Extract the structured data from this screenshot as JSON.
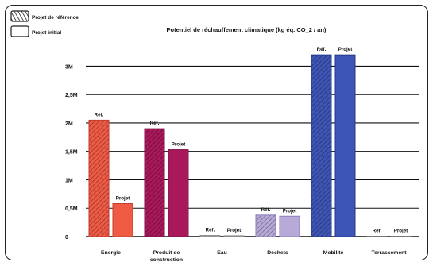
{
  "chart_data": {
    "type": "bar",
    "title": "Potentiel de réchauffement climatique (kg éq. CO_2 / an)",
    "xlabel": "",
    "ylabel": "",
    "ylim": [
      0,
      3300000
    ],
    "yticks": [
      {
        "value": 0,
        "label": "0"
      },
      {
        "value": 500000,
        "label": "0,5M"
      },
      {
        "value": 1000000,
        "label": "1M"
      },
      {
        "value": 1500000,
        "label": "1,5M"
      },
      {
        "value": 2000000,
        "label": "2M"
      },
      {
        "value": 2500000,
        "label": "2,5M"
      },
      {
        "value": 3000000,
        "label": "3M"
      }
    ],
    "grid": true,
    "legend_position": "top-left",
    "categories": [
      "Energie",
      "Produit de construction",
      "Eau",
      "Déchets",
      "Mobilité",
      "Terrassement"
    ],
    "series": [
      {
        "name": "Projet de référence",
        "hatched": true,
        "bar_label": "Réf.",
        "values": [
          2050000,
          1900000,
          20000,
          380000,
          3200000,
          5000
        ]
      },
      {
        "name": "Projet initial",
        "hatched": false,
        "bar_label": "Projet",
        "values": [
          580000,
          1530000,
          15000,
          360000,
          3200000,
          5000
        ]
      }
    ],
    "colors": [
      "#ef5a45",
      "#a8185a",
      "#b8b8b8",
      "#b8aad8",
      "#3d55b5",
      "#999999"
    ],
    "outline_colors": [
      "#c23d2b",
      "#7d1042",
      "#888888",
      "#8b7cc0",
      "#24388a",
      "#777777"
    ]
  }
}
